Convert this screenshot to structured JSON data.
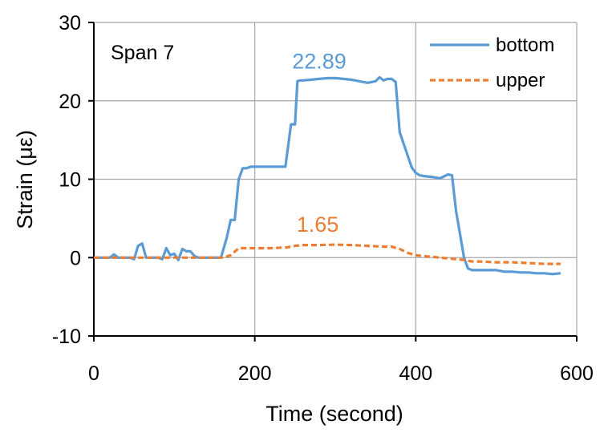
{
  "chart_data": {
    "type": "line",
    "panel_label": "Span 7",
    "xlabel": "Time (second)",
    "ylabel": "Strain (με)",
    "xlim": [
      0,
      600
    ],
    "ylim": [
      -10,
      30
    ],
    "x_ticks": [
      0,
      200,
      400,
      600
    ],
    "y_ticks": [
      -10,
      0,
      10,
      20,
      30
    ],
    "x_tick_labels": [
      "0",
      "200",
      "400",
      "600"
    ],
    "y_tick_labels": [
      "-10",
      "0",
      "10",
      "20",
      "30"
    ],
    "grid": true,
    "legend_position": "top-right",
    "series": [
      {
        "name": "bottom",
        "color": "#5B9BD5",
        "line_style": "solid",
        "x": [
          0,
          10,
          20,
          25,
          30,
          35,
          40,
          45,
          50,
          55,
          60,
          65,
          70,
          75,
          80,
          85,
          90,
          95,
          100,
          105,
          110,
          115,
          120,
          125,
          130,
          140,
          150,
          158,
          165,
          170,
          175,
          180,
          185,
          190,
          195,
          200,
          210,
          220,
          230,
          238,
          245,
          250,
          253,
          256,
          260,
          270,
          280,
          290,
          300,
          310,
          320,
          330,
          340,
          350,
          355,
          360,
          365,
          370,
          375,
          380,
          385,
          390,
          395,
          400,
          405,
          410,
          420,
          430,
          440,
          445,
          450,
          455,
          460,
          465,
          470,
          480,
          490,
          500,
          510,
          520,
          530,
          540,
          550,
          560,
          570,
          580
        ],
        "y": [
          0,
          0,
          0,
          0.4,
          0,
          0,
          0,
          0,
          -0.2,
          1.5,
          1.8,
          0,
          0,
          0,
          0,
          -0.2,
          1.2,
          0.3,
          0.5,
          -0.3,
          1.1,
          0.8,
          0.8,
          0.2,
          0,
          0,
          0,
          0,
          2.5,
          4.8,
          4.8,
          10,
          11.4,
          11.4,
          11.6,
          11.6,
          11.6,
          11.6,
          11.6,
          11.6,
          17,
          17,
          22.5,
          22.6,
          22.6,
          22.7,
          22.8,
          22.89,
          22.9,
          22.8,
          22.7,
          22.5,
          22.3,
          22.5,
          23.0,
          22.6,
          22.8,
          22.8,
          22.4,
          16,
          14.5,
          13,
          11.5,
          10.8,
          10.5,
          10.4,
          10.3,
          10.1,
          10.6,
          10.5,
          6,
          3,
          0,
          -1.4,
          -1.6,
          -1.6,
          -1.6,
          -1.6,
          -1.8,
          -1.8,
          -1.9,
          -1.9,
          -2.0,
          -2.0,
          -2.1,
          -2.0
        ],
        "peak_label": "22.89",
        "peak_label_at": [
          300,
          22.89
        ]
      },
      {
        "name": "upper",
        "color": "#ED7D31",
        "line_style": "dashed",
        "x": [
          0,
          20,
          40,
          60,
          80,
          100,
          120,
          140,
          160,
          170,
          180,
          190,
          200,
          220,
          240,
          250,
          260,
          280,
          300,
          320,
          340,
          360,
          370,
          380,
          390,
          400,
          420,
          440,
          460,
          470,
          480,
          500,
          520,
          540,
          560,
          580
        ],
        "y": [
          0,
          0,
          0,
          0,
          0,
          0,
          0,
          0,
          0,
          0.3,
          1.2,
          1.2,
          1.2,
          1.2,
          1.3,
          1.5,
          1.6,
          1.6,
          1.65,
          1.6,
          1.5,
          1.4,
          1.4,
          1.1,
          0.6,
          0.3,
          0.1,
          -0.1,
          -0.3,
          -0.5,
          -0.5,
          -0.6,
          -0.6,
          -0.7,
          -0.8,
          -0.8
        ],
        "peak_label": "1.65",
        "peak_label_at": [
          300,
          1.65
        ]
      }
    ]
  }
}
